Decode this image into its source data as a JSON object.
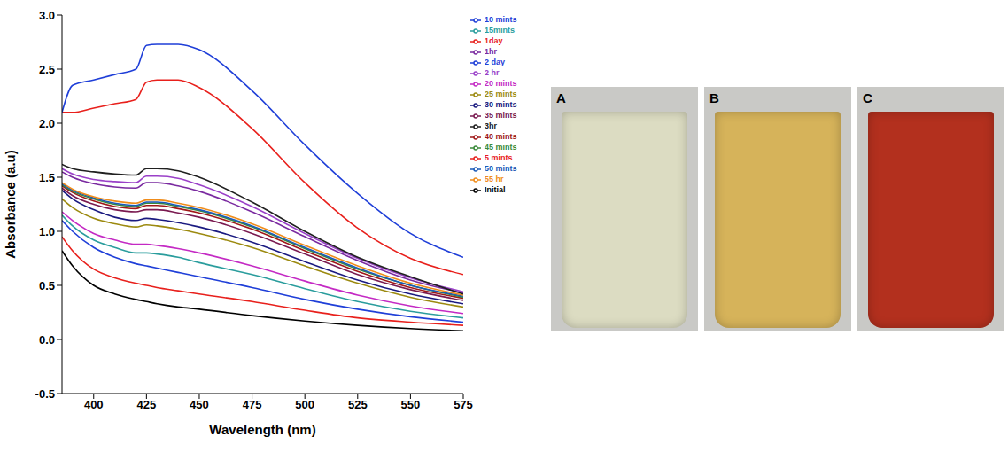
{
  "chart_data": {
    "type": "line",
    "x_label": "Wavelength (nm)",
    "y_label": "Absorbance (a.u)",
    "x": [
      385,
      390,
      400,
      410,
      420,
      425,
      430,
      440,
      450,
      475,
      500,
      525,
      550,
      575
    ],
    "xlim": [
      385,
      575
    ],
    "xticks": [
      400,
      425,
      450,
      475,
      500,
      525,
      550,
      575
    ],
    "ylim": [
      -0.5,
      3.0
    ],
    "yticks": [
      -0.5,
      {
        "value": 0,
        "label": "0.0"
      },
      0.5,
      {
        "value": 1,
        "label": "1.0"
      },
      1.5,
      {
        "value": 2,
        "label": "2.0"
      },
      2.5,
      {
        "value": 3,
        "label": "3.0"
      }
    ],
    "grid": false,
    "legend": "right",
    "series": [
      {
        "name": "Initial",
        "color": "#000000",
        "values": [
          0.82,
          0.68,
          0.5,
          0.42,
          0.37,
          0.35,
          0.33,
          0.3,
          0.28,
          0.22,
          0.17,
          0.13,
          0.1,
          0.08
        ]
      },
      {
        "name": "5 mints",
        "color": "#e8201c",
        "values": [
          0.95,
          0.82,
          0.65,
          0.57,
          0.52,
          0.5,
          0.48,
          0.45,
          0.42,
          0.35,
          0.27,
          0.2,
          0.16,
          0.13
        ]
      },
      {
        "name": "10 mints",
        "color": "#1f3fd8",
        "values": [
          1.1,
          1.0,
          0.85,
          0.76,
          0.7,
          0.68,
          0.66,
          0.62,
          0.58,
          0.48,
          0.37,
          0.28,
          0.21,
          0.16
        ]
      },
      {
        "name": "15mints",
        "color": "#2a9d9d",
        "values": [
          1.15,
          1.05,
          0.92,
          0.85,
          0.8,
          0.8,
          0.79,
          0.76,
          0.71,
          0.6,
          0.47,
          0.35,
          0.26,
          0.2
        ]
      },
      {
        "name": "20 mints",
        "color": "#c42ac4",
        "values": [
          1.18,
          1.1,
          0.98,
          0.92,
          0.88,
          0.88,
          0.87,
          0.84,
          0.8,
          0.68,
          0.54,
          0.41,
          0.31,
          0.24
        ]
      },
      {
        "name": "25 mints",
        "color": "#9c8a10",
        "values": [
          1.3,
          1.22,
          1.12,
          1.07,
          1.04,
          1.06,
          1.05,
          1.02,
          0.98,
          0.85,
          0.68,
          0.52,
          0.39,
          0.3
        ]
      },
      {
        "name": "30 mints",
        "color": "#1a1a80",
        "values": [
          1.38,
          1.3,
          1.2,
          1.13,
          1.1,
          1.12,
          1.11,
          1.08,
          1.04,
          0.9,
          0.72,
          0.55,
          0.42,
          0.33
        ]
      },
      {
        "name": "35 mints",
        "color": "#7a1a50",
        "values": [
          1.4,
          1.33,
          1.25,
          1.2,
          1.18,
          1.2,
          1.2,
          1.17,
          1.13,
          0.98,
          0.79,
          0.6,
          0.46,
          0.36
        ]
      },
      {
        "name": "40 mints",
        "color": "#a01818",
        "values": [
          1.42,
          1.36,
          1.28,
          1.23,
          1.21,
          1.24,
          1.24,
          1.21,
          1.17,
          1.02,
          0.82,
          0.63,
          0.48,
          0.38
        ]
      },
      {
        "name": "45 mints",
        "color": "#3a8a3a",
        "values": [
          1.43,
          1.37,
          1.3,
          1.25,
          1.23,
          1.26,
          1.26,
          1.23,
          1.19,
          1.04,
          0.84,
          0.65,
          0.5,
          0.39
        ]
      },
      {
        "name": "50 mints",
        "color": "#1a5ab8",
        "values": [
          1.44,
          1.38,
          1.31,
          1.26,
          1.24,
          1.27,
          1.27,
          1.24,
          1.2,
          1.05,
          0.85,
          0.66,
          0.5,
          0.4
        ]
      },
      {
        "name": "55 hr",
        "color": "#f08c1a",
        "values": [
          1.45,
          1.39,
          1.32,
          1.28,
          1.26,
          1.29,
          1.29,
          1.26,
          1.22,
          1.07,
          0.87,
          0.68,
          0.52,
          0.41
        ]
      },
      {
        "name": "1hr",
        "color": "#7a2aa0",
        "values": [
          1.55,
          1.5,
          1.44,
          1.41,
          1.4,
          1.45,
          1.45,
          1.42,
          1.37,
          1.18,
          0.95,
          0.73,
          0.55,
          0.43
        ]
      },
      {
        "name": "2 hr",
        "color": "#9a40c8",
        "values": [
          1.58,
          1.53,
          1.48,
          1.46,
          1.45,
          1.51,
          1.51,
          1.49,
          1.43,
          1.23,
          0.98,
          0.75,
          0.57,
          0.44
        ]
      },
      {
        "name": "3hr",
        "color": "#202020",
        "values": [
          1.62,
          1.58,
          1.55,
          1.53,
          1.52,
          1.58,
          1.58,
          1.56,
          1.5,
          1.27,
          1.0,
          0.76,
          0.58,
          0.42
        ]
      },
      {
        "name": "1day",
        "color": "#e8201c",
        "values": [
          2.1,
          2.1,
          2.14,
          2.18,
          2.22,
          2.38,
          2.4,
          2.4,
          2.33,
          1.95,
          1.45,
          1.03,
          0.75,
          0.6
        ]
      },
      {
        "name": "2 day",
        "color": "#1f3fd8",
        "values": [
          2.1,
          2.35,
          2.4,
          2.45,
          2.5,
          2.72,
          2.73,
          2.73,
          2.68,
          2.3,
          1.8,
          1.35,
          0.98,
          0.76
        ]
      }
    ]
  },
  "panels": [
    {
      "label": "A",
      "color": "#dcdcc2"
    },
    {
      "label": "B",
      "color": "#d6b35a"
    },
    {
      "label": "C",
      "color": "#b3301e"
    }
  ]
}
